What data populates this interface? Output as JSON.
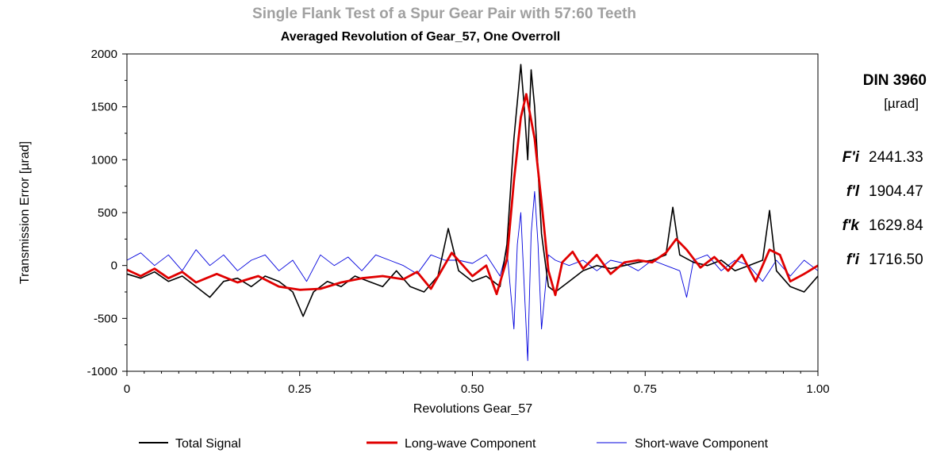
{
  "chart_data": {
    "type": "line",
    "title": "Single Flank Test of a Spur Gear Pair with 57:60 Teeth",
    "subtitle": "Averaged Revolution of Gear_57, One Overroll",
    "xlabel": "Revolutions Gear_57",
    "ylabel": "Transmission Error [µrad]",
    "xlim": [
      0,
      1
    ],
    "ylim": [
      -1000,
      2000
    ],
    "x_ticks": [
      0,
      0.25,
      0.5,
      0.75,
      1.0
    ],
    "x_tick_labels": [
      "0",
      "0.25",
      "0.50",
      "0.75",
      "1.00"
    ],
    "y_ticks": [
      -1000,
      -500,
      0,
      500,
      1000,
      1500,
      2000
    ],
    "y_tick_labels": [
      "-1000",
      "-500",
      "0",
      "500",
      "1000",
      "1500",
      "2000"
    ],
    "grid": false,
    "legend_position": "bottom",
    "series": [
      {
        "name": "Total Signal",
        "color": "#000000",
        "x": [
          0,
          0.02,
          0.04,
          0.06,
          0.08,
          0.1,
          0.12,
          0.14,
          0.16,
          0.18,
          0.2,
          0.22,
          0.24,
          0.255,
          0.27,
          0.29,
          0.31,
          0.33,
          0.35,
          0.37,
          0.39,
          0.41,
          0.43,
          0.45,
          0.465,
          0.48,
          0.5,
          0.52,
          0.54,
          0.55,
          0.56,
          0.57,
          0.575,
          0.58,
          0.585,
          0.59,
          0.6,
          0.61,
          0.62,
          0.64,
          0.66,
          0.68,
          0.7,
          0.72,
          0.74,
          0.76,
          0.78,
          0.79,
          0.8,
          0.82,
          0.84,
          0.86,
          0.88,
          0.9,
          0.92,
          0.93,
          0.94,
          0.96,
          0.98,
          1.0
        ],
        "values": [
          -80,
          -120,
          -60,
          -150,
          -100,
          -200,
          -300,
          -150,
          -120,
          -200,
          -100,
          -150,
          -250,
          -480,
          -250,
          -150,
          -200,
          -100,
          -150,
          -200,
          -50,
          -200,
          -250,
          -100,
          350,
          -50,
          -150,
          -100,
          -200,
          200,
          1200,
          1900,
          1500,
          1000,
          1850,
          1500,
          300,
          -200,
          -250,
          -150,
          -50,
          0,
          -30,
          0,
          30,
          50,
          100,
          550,
          100,
          30,
          0,
          50,
          -50,
          0,
          50,
          520,
          -50,
          -200,
          -250,
          -100
        ]
      },
      {
        "name": "Long-wave Component",
        "color": "#e00000",
        "x": [
          0,
          0.02,
          0.04,
          0.06,
          0.08,
          0.1,
          0.13,
          0.16,
          0.19,
          0.22,
          0.25,
          0.28,
          0.31,
          0.34,
          0.37,
          0.4,
          0.42,
          0.44,
          0.47,
          0.5,
          0.52,
          0.535,
          0.55,
          0.56,
          0.57,
          0.578,
          0.59,
          0.6,
          0.61,
          0.62,
          0.63,
          0.645,
          0.66,
          0.68,
          0.7,
          0.72,
          0.74,
          0.76,
          0.78,
          0.795,
          0.81,
          0.83,
          0.85,
          0.87,
          0.89,
          0.91,
          0.93,
          0.945,
          0.96,
          0.98,
          1.0
        ],
        "values": [
          -40,
          -100,
          -30,
          -120,
          -60,
          -160,
          -80,
          -160,
          -100,
          -200,
          -230,
          -220,
          -160,
          -120,
          -100,
          -130,
          -60,
          -220,
          120,
          -100,
          0,
          -270,
          60,
          800,
          1400,
          1620,
          1200,
          600,
          -50,
          -280,
          30,
          130,
          -30,
          100,
          -80,
          30,
          50,
          30,
          120,
          250,
          150,
          -20,
          80,
          -50,
          100,
          -150,
          150,
          100,
          -150,
          -80,
          0
        ]
      },
      {
        "name": "Short-wave Component",
        "color": "#0000dd",
        "x": [
          0,
          0.02,
          0.04,
          0.06,
          0.08,
          0.1,
          0.12,
          0.14,
          0.16,
          0.18,
          0.2,
          0.22,
          0.24,
          0.26,
          0.28,
          0.3,
          0.32,
          0.34,
          0.36,
          0.38,
          0.4,
          0.42,
          0.44,
          0.46,
          0.48,
          0.5,
          0.52,
          0.54,
          0.55,
          0.56,
          0.565,
          0.57,
          0.575,
          0.58,
          0.585,
          0.59,
          0.595,
          0.6,
          0.61,
          0.62,
          0.64,
          0.66,
          0.68,
          0.7,
          0.72,
          0.74,
          0.76,
          0.78,
          0.8,
          0.81,
          0.82,
          0.84,
          0.86,
          0.88,
          0.9,
          0.92,
          0.94,
          0.96,
          0.98,
          1.0
        ],
        "values": [
          50,
          120,
          0,
          100,
          -50,
          150,
          0,
          100,
          -50,
          50,
          100,
          -50,
          50,
          -150,
          100,
          0,
          80,
          -50,
          100,
          50,
          0,
          -80,
          100,
          50,
          50,
          20,
          100,
          -100,
          150,
          -600,
          200,
          500,
          -200,
          -900,
          300,
          700,
          200,
          -600,
          100,
          50,
          0,
          50,
          -50,
          50,
          20,
          -50,
          50,
          0,
          -50,
          -300,
          50,
          100,
          -50,
          50,
          0,
          -150,
          50,
          -100,
          50,
          -50
        ]
      }
    ],
    "annotations": {
      "standard": "DIN 3960",
      "unit": "[µrad]",
      "metrics": [
        {
          "label": "F'i",
          "value": "2441.33"
        },
        {
          "label": "f'l",
          "value": "1904.47"
        },
        {
          "label": "f'k",
          "value": "1629.84"
        },
        {
          "label": "f'i",
          "value": "1716.50"
        }
      ]
    }
  }
}
